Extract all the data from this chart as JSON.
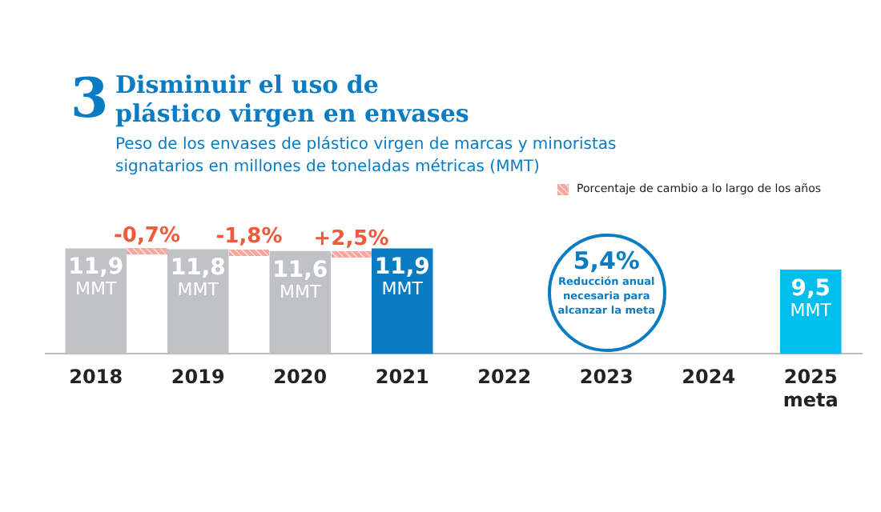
{
  "chart_data": {
    "type": "bar",
    "title": "Disminuir el uso de plástico virgen en envases",
    "subtitle": "Peso de los envases de plástico virgen de marcas y minoristas signatarios en millones de toneladas métricas (MMT)",
    "categories": [
      "2018",
      "2019",
      "2020",
      "2021",
      "2022",
      "2023",
      "2024",
      "2025 meta"
    ],
    "values": [
      11.9,
      11.8,
      11.6,
      11.9,
      null,
      null,
      null,
      9.5
    ],
    "colors": [
      "#c1c2c6",
      "#c1c2c6",
      "#c1c2c6",
      "#0a7cc4",
      "#c1c2c6",
      "#c1c2c6",
      "#c1c2c6",
      "#00bfef"
    ],
    "value_labels": [
      "11,9 MMT",
      "11,8 MMT",
      "11,6 MMT",
      "11,9 MMT",
      null,
      null,
      null,
      "9,5 MMT"
    ],
    "annotations": [
      "3",
      {
        "text": "-0,7%",
        "x": "2019",
        "y": 11.9
      },
      {
        "text": "-1,8%",
        "x": "2020",
        "y": 11.8
      },
      {
        "text": "+2,5%",
        "x": "2021",
        "y": 11.6
      },
      "5,4%",
      "Reducción anual necesaria para alcanzar la meta",
      "Porcentaje de cambio a lo largo de los años"
    ],
    "grid": false,
    "legend": false
  }
}
